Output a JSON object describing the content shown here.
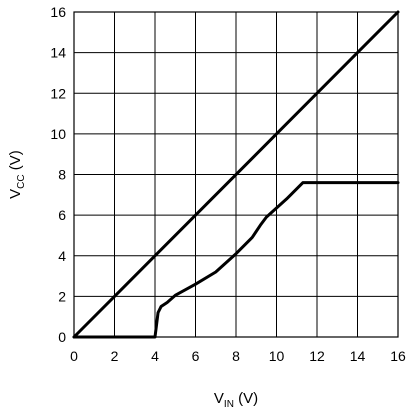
{
  "chart_data": {
    "type": "line",
    "title": "",
    "xlabel": {
      "main": "V",
      "sub": "IN",
      "unit": " (V)"
    },
    "ylabel": {
      "main": "V",
      "sub": "CC",
      "unit": " (V)"
    },
    "xlim": [
      0,
      16
    ],
    "ylim": [
      0,
      16
    ],
    "xticks": [
      0,
      2,
      4,
      6,
      8,
      10,
      12,
      14,
      16
    ],
    "yticks": [
      0,
      2,
      4,
      6,
      8,
      10,
      12,
      14,
      16
    ],
    "grid": true,
    "series": [
      {
        "x": [
          0,
          16
        ],
        "y": [
          0,
          16
        ]
      },
      {
        "x": [
          0,
          4.0,
          4.05,
          4.15,
          4.3,
          4.6,
          5.0,
          6.0,
          7.0,
          8.0,
          8.8,
          9.2,
          9.5,
          10.5,
          11.3,
          11.5,
          16
        ],
        "y": [
          0,
          0,
          0.4,
          1.2,
          1.5,
          1.7,
          2.05,
          2.6,
          3.2,
          4.1,
          4.9,
          5.5,
          5.9,
          6.8,
          7.6,
          7.6,
          7.6
        ]
      }
    ]
  }
}
